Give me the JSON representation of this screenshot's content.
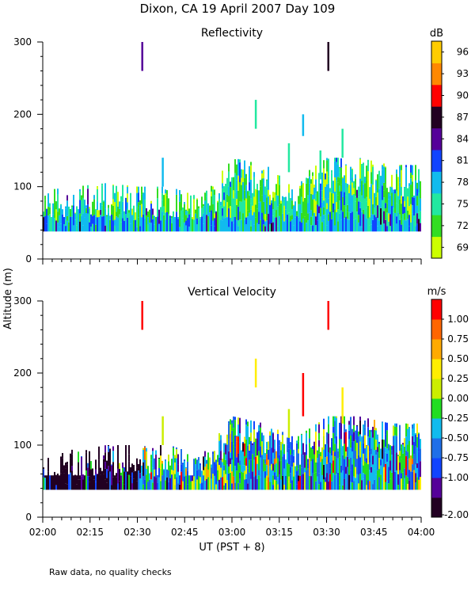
{
  "title": "Dixon, CA 19 April 2007  Day 109",
  "footnote": "Raw data, no quality checks",
  "shared_y_label": "Altitude (m)",
  "colors": {
    "reflectivity_scale": [
      "#ccff00",
      "#33dd22",
      "#22e8a0",
      "#11bbee",
      "#1144ff",
      "#550099",
      "#220022",
      "#ff0000",
      "#ff8800",
      "#ffcc00"
    ],
    "velocity_scale": [
      "#220022",
      "#550099",
      "#1144ff",
      "#1f6fe8",
      "#11bbee",
      "#22dd22",
      "#ccee00",
      "#ffee00",
      "#ffaa00",
      "#ff6600",
      "#ff0000"
    ]
  },
  "chart_data": [
    {
      "type": "heatmap",
      "title": "Reflectivity",
      "xlabel": "",
      "ylabel": "Altitude (m)",
      "x_ticks": [
        "02:00",
        "02:15",
        "02:30",
        "02:45",
        "03:00",
        "03:15",
        "03:30",
        "03:45",
        "04:00"
      ],
      "x_range_minutes": [
        0,
        120
      ],
      "y_ticks": [
        0,
        100,
        200,
        300
      ],
      "ylim": [
        0,
        300
      ],
      "colorbar": {
        "unit": "dB",
        "labels": [
          "69",
          "72",
          "75",
          "78",
          "81",
          "84",
          "87",
          "90",
          "93",
          "96"
        ]
      },
      "echo_base_altitude_m": 38,
      "echo_top_profile": [
        {
          "minute": 0,
          "top_m": 95
        },
        {
          "minute": 10,
          "top_m": 100
        },
        {
          "minute": 20,
          "top_m": 105
        },
        {
          "minute": 30,
          "top_m": 100
        },
        {
          "minute": 40,
          "top_m": 100
        },
        {
          "minute": 50,
          "top_m": 85
        },
        {
          "minute": 60,
          "top_m": 140
        },
        {
          "minute": 70,
          "top_m": 130
        },
        {
          "minute": 80,
          "top_m": 110
        },
        {
          "minute": 90,
          "top_m": 140
        },
        {
          "minute": 100,
          "top_m": 140
        },
        {
          "minute": 110,
          "top_m": 130
        },
        {
          "minute": 120,
          "top_m": 130
        }
      ],
      "isolated_returns": [
        {
          "minute": 31.5,
          "alt_from_m": 260,
          "alt_to_m": 300,
          "value": "84"
        },
        {
          "minute": 90.5,
          "alt_from_m": 260,
          "alt_to_m": 300,
          "value": "87"
        },
        {
          "minute": 67.5,
          "alt_from_m": 180,
          "alt_to_m": 220,
          "value": "75"
        },
        {
          "minute": 82.5,
          "alt_from_m": 170,
          "alt_to_m": 200,
          "value": "78"
        },
        {
          "minute": 38.0,
          "alt_from_m": 100,
          "alt_to_m": 140,
          "value": "78"
        },
        {
          "minute": 95.0,
          "alt_from_m": 140,
          "alt_to_m": 180,
          "value": "75"
        },
        {
          "minute": 78.0,
          "alt_from_m": 120,
          "alt_to_m": 160,
          "value": "75"
        },
        {
          "minute": 88.0,
          "alt_from_m": 110,
          "alt_to_m": 150,
          "value": "75"
        }
      ]
    },
    {
      "type": "heatmap",
      "title": "Vertical Velocity",
      "xlabel": "UT  (PST + 8)",
      "ylabel": "Altitude (m)",
      "x_ticks": [
        "02:00",
        "02:15",
        "02:30",
        "02:45",
        "03:00",
        "03:15",
        "03:30",
        "03:45",
        "04:00"
      ],
      "x_range_minutes": [
        0,
        120
      ],
      "y_ticks": [
        0,
        100,
        200,
        300
      ],
      "ylim": [
        0,
        300
      ],
      "colorbar": {
        "unit": "m/s",
        "labels": [
          "-2.00",
          "-1.00",
          "-0.75",
          "-0.50",
          "-0.25",
          "0.00",
          "0.25",
          "0.50",
          "0.75",
          "1.00"
        ]
      },
      "echo_base_altitude_m": 38,
      "dominant_value_0200_0230": "-2.00",
      "echo_top_profile": [
        {
          "minute": 0,
          "top_m": 80
        },
        {
          "minute": 10,
          "top_m": 95
        },
        {
          "minute": 20,
          "top_m": 100
        },
        {
          "minute": 30,
          "top_m": 100
        },
        {
          "minute": 40,
          "top_m": 100
        },
        {
          "minute": 50,
          "top_m": 85
        },
        {
          "minute": 60,
          "top_m": 140
        },
        {
          "minute": 70,
          "top_m": 130
        },
        {
          "minute": 80,
          "top_m": 110
        },
        {
          "minute": 90,
          "top_m": 140
        },
        {
          "minute": 100,
          "top_m": 140
        },
        {
          "minute": 110,
          "top_m": 130
        },
        {
          "minute": 120,
          "top_m": 130
        }
      ],
      "isolated_returns": [
        {
          "minute": 31.5,
          "alt_from_m": 260,
          "alt_to_m": 300,
          "value": "1.00"
        },
        {
          "minute": 90.5,
          "alt_from_m": 260,
          "alt_to_m": 300,
          "value": "1.00"
        },
        {
          "minute": 67.5,
          "alt_from_m": 180,
          "alt_to_m": 220,
          "value": "0.50"
        },
        {
          "minute": 82.5,
          "alt_from_m": 140,
          "alt_to_m": 200,
          "value": "1.00"
        },
        {
          "minute": 95.0,
          "alt_from_m": 130,
          "alt_to_m": 180,
          "value": "0.50"
        },
        {
          "minute": 38.0,
          "alt_from_m": 100,
          "alt_to_m": 140,
          "value": "0.25"
        },
        {
          "minute": 78.0,
          "alt_from_m": 110,
          "alt_to_m": 150,
          "value": "0.25"
        }
      ]
    }
  ]
}
